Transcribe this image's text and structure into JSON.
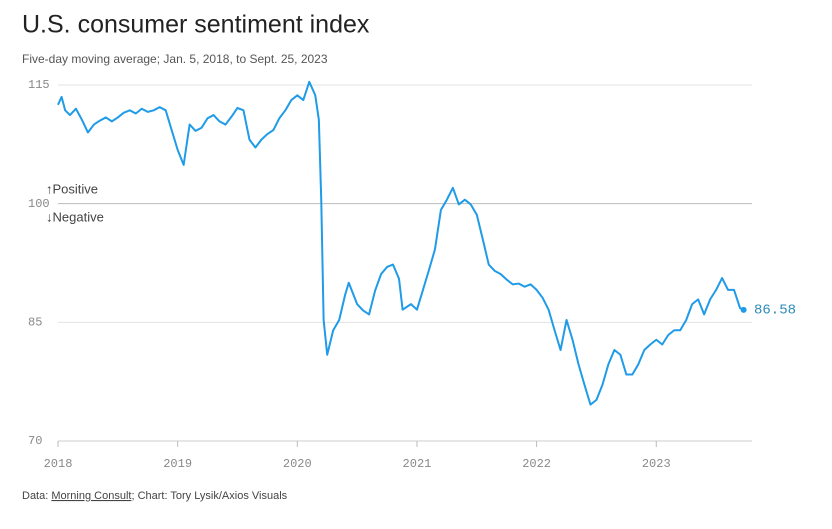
{
  "chart_data": {
    "type": "line",
    "title": "U.S. consumer sentiment index",
    "subtitle": "Five-day moving average; Jan. 5, 2018, to Sept. 25, 2023",
    "annotations": {
      "above": "↑Positive",
      "below": "↓Negative"
    },
    "source": {
      "prefix": "Data: ",
      "link": "Morning Consult",
      "suffix": "; Chart: Tory Lysik/Axios Visuals"
    },
    "x": [
      2018.0,
      2018.03,
      2018.06,
      2018.1,
      2018.15,
      2018.2,
      2018.25,
      2018.3,
      2018.35,
      2018.4,
      2018.45,
      2018.5,
      2018.55,
      2018.6,
      2018.65,
      2018.7,
      2018.75,
      2018.8,
      2018.85,
      2018.9,
      2018.95,
      2019.0,
      2019.05,
      2019.1,
      2019.15,
      2019.2,
      2019.25,
      2019.3,
      2019.35,
      2019.4,
      2019.45,
      2019.5,
      2019.55,
      2019.6,
      2019.65,
      2019.7,
      2019.75,
      2019.8,
      2019.85,
      2019.9,
      2019.95,
      2020.0,
      2020.05,
      2020.1,
      2020.15,
      2020.18,
      2020.2,
      2020.22,
      2020.25,
      2020.3,
      2020.35,
      2020.4,
      2020.43,
      2020.5,
      2020.55,
      2020.6,
      2020.65,
      2020.7,
      2020.75,
      2020.8,
      2020.85,
      2020.88,
      2020.95,
      2021.0,
      2021.05,
      2021.1,
      2021.15,
      2021.2,
      2021.25,
      2021.3,
      2021.35,
      2021.4,
      2021.45,
      2021.5,
      2021.55,
      2021.6,
      2021.65,
      2021.7,
      2021.75,
      2021.8,
      2021.85,
      2021.9,
      2021.95,
      2022.0,
      2022.05,
      2022.1,
      2022.15,
      2022.2,
      2022.25,
      2022.3,
      2022.35,
      2022.4,
      2022.45,
      2022.5,
      2022.55,
      2022.6,
      2022.65,
      2022.7,
      2022.75,
      2022.8,
      2022.85,
      2022.9,
      2022.95,
      2023.0,
      2023.05,
      2023.1,
      2023.15,
      2023.2,
      2023.25,
      2023.3,
      2023.35,
      2023.4,
      2023.45,
      2023.5,
      2023.55,
      2023.6,
      2023.65,
      2023.7,
      2023.73
    ],
    "series": [
      {
        "name": "Consumer sentiment",
        "color": "#1f9be8",
        "values": [
          112.5,
          113.5,
          111.8,
          111.2,
          112.0,
          110.6,
          109.0,
          110.0,
          110.5,
          110.9,
          110.4,
          110.9,
          111.5,
          111.8,
          111.4,
          112.0,
          111.6,
          111.8,
          112.2,
          111.8,
          109.3,
          106.8,
          104.9,
          110.0,
          109.2,
          109.6,
          110.8,
          111.2,
          110.4,
          110.0,
          111.0,
          112.1,
          111.8,
          108.1,
          107.1,
          108.1,
          108.8,
          109.3,
          110.8,
          111.8,
          113.1,
          113.7,
          113.1,
          115.4,
          113.7,
          110.6,
          100.5,
          85.3,
          80.9,
          84.0,
          85.3,
          88.5,
          90.0,
          87.3,
          86.5,
          86.0,
          89.0,
          91.1,
          92.0,
          92.3,
          90.5,
          86.6,
          87.3,
          86.6,
          89.1,
          91.6,
          94.2,
          99.2,
          100.5,
          102.0,
          99.9,
          100.5,
          99.9,
          98.6,
          95.5,
          92.3,
          91.5,
          91.1,
          90.4,
          89.8,
          89.9,
          89.5,
          89.8,
          89.1,
          88.1,
          86.6,
          84.0,
          81.5,
          85.3,
          82.8,
          79.7,
          77.1,
          74.6,
          75.2,
          77.1,
          79.7,
          81.5,
          80.9,
          78.4,
          78.4,
          79.7,
          81.5,
          82.2,
          82.8,
          82.2,
          83.4,
          84.0,
          84.0,
          85.3,
          87.3,
          87.9,
          86.0,
          87.9,
          89.1,
          90.6,
          89.1,
          89.1,
          86.8,
          86.58
        ]
      }
    ],
    "xlim": [
      2018.0,
      2023.8
    ],
    "xticks": [
      2018,
      2019,
      2020,
      2021,
      2022,
      2023
    ],
    "ylim": [
      70,
      115
    ],
    "yticks": [
      70,
      85,
      100,
      115
    ],
    "grid": true
  }
}
